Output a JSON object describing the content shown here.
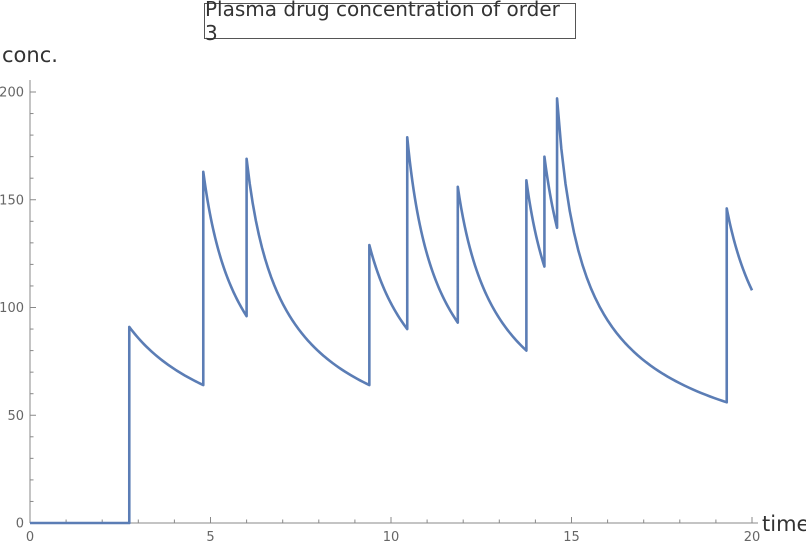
{
  "chart_data": {
    "type": "line",
    "title": "Plasma drug concentration of order 3",
    "xlabel": "time",
    "ylabel": "conc.",
    "xlim": [
      0,
      20
    ],
    "ylim": [
      0,
      200
    ],
    "x_ticks": [
      0,
      5,
      10,
      15,
      20
    ],
    "y_ticks": [
      0,
      50,
      100,
      150,
      200
    ],
    "grid": false,
    "line_color": "#5b7db5",
    "series": [
      {
        "segments": [
          {
            "from": [
              0.0,
              0
            ],
            "to": [
              2.75,
              0
            ],
            "end_value": 0
          },
          {
            "from": [
              2.75,
              0
            ],
            "to": [
              2.75,
              91
            ],
            "jump": true
          },
          {
            "from": [
              2.75,
              91
            ],
            "to": [
              4.8,
              64
            ],
            "end_value": 64
          },
          {
            "from": [
              4.8,
              64
            ],
            "to": [
              4.8,
              163
            ],
            "jump": true
          },
          {
            "from": [
              4.8,
              163
            ],
            "to": [
              6.0,
              96
            ],
            "end_value": 96
          },
          {
            "from": [
              6.0,
              96
            ],
            "to": [
              6.0,
              169
            ],
            "jump": true
          },
          {
            "from": [
              6.0,
              169
            ],
            "to": [
              9.4,
              64
            ],
            "end_value": 64
          },
          {
            "from": [
              9.4,
              64
            ],
            "to": [
              9.4,
              129
            ],
            "jump": true
          },
          {
            "from": [
              9.4,
              129
            ],
            "to": [
              10.45,
              90
            ],
            "end_value": 90
          },
          {
            "from": [
              10.45,
              90
            ],
            "to": [
              10.45,
              179
            ],
            "jump": true
          },
          {
            "from": [
              10.45,
              179
            ],
            "to": [
              11.85,
              93
            ],
            "end_value": 93
          },
          {
            "from": [
              11.85,
              93
            ],
            "to": [
              11.85,
              156
            ],
            "jump": true
          },
          {
            "from": [
              11.85,
              156
            ],
            "to": [
              13.75,
              80
            ],
            "end_value": 80
          },
          {
            "from": [
              13.75,
              80
            ],
            "to": [
              13.75,
              159
            ],
            "jump": true
          },
          {
            "from": [
              13.75,
              159
            ],
            "to": [
              14.25,
              119
            ],
            "end_value": 119
          },
          {
            "from": [
              14.25,
              119
            ],
            "to": [
              14.25,
              170
            ],
            "jump": true
          },
          {
            "from": [
              14.25,
              170
            ],
            "to": [
              14.6,
              137
            ],
            "end_value": 137
          },
          {
            "from": [
              14.6,
              137
            ],
            "to": [
              14.6,
              197
            ],
            "jump": true
          },
          {
            "from": [
              14.6,
              197
            ],
            "to": [
              19.3,
              56
            ],
            "end_value": 56
          },
          {
            "from": [
              19.3,
              56
            ],
            "to": [
              19.3,
              146
            ],
            "jump": true
          },
          {
            "from": [
              19.3,
              146
            ],
            "to": [
              20.0,
              108
            ],
            "end_value": 108
          }
        ]
      }
    ]
  }
}
